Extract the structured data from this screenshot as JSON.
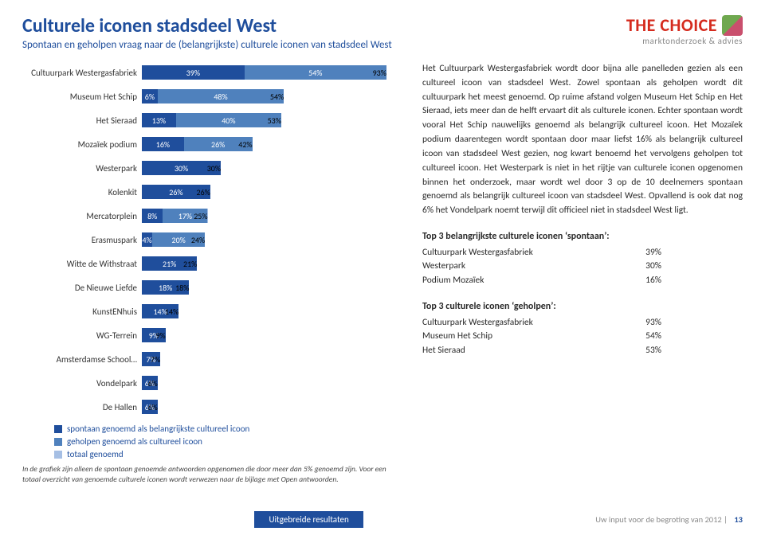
{
  "header": {
    "title": "Culturele iconen stadsdeel West",
    "subtitle": "Spontaan en geholpen vraag naar de (belangrijkste) culturele iconen van stadsdeel West"
  },
  "logo": {
    "main": "THE CHOICE",
    "sub": "marktonderzoek & advies"
  },
  "chart": {
    "type": "bar",
    "xmax": 100,
    "colors": {
      "spontaan": "#1f4e9c",
      "geholpen": "#4f81bd",
      "totaal": "#a6bfe4"
    },
    "label_color": "#ffffff",
    "label_fontsize": 10,
    "rows": [
      {
        "label": "Cultuurpark Westergasfabriek",
        "segments": [
          39,
          54
        ],
        "total": 93
      },
      {
        "label": "Museum Het Schip",
        "segments": [
          6,
          48
        ],
        "total": 54
      },
      {
        "label": "Het Sieraad",
        "segments": [
          13,
          40
        ],
        "total": 53
      },
      {
        "label": "Mozaïek podium",
        "segments": [
          16,
          26
        ],
        "total": 42
      },
      {
        "label": "Westerpark",
        "segments": [
          30
        ],
        "total": 30
      },
      {
        "label": "Kolenkit",
        "segments": [
          26
        ],
        "total": 26
      },
      {
        "label": "Mercatorplein",
        "segments": [
          8,
          17
        ],
        "total": 25
      },
      {
        "label": "Erasmuspark",
        "segments": [
          4,
          20
        ],
        "total": 24
      },
      {
        "label": "Witte de Withstraat",
        "segments": [
          21
        ],
        "total": 21
      },
      {
        "label": "De Nieuwe Liefde",
        "segments": [
          18
        ],
        "total": 18
      },
      {
        "label": "KunstENhuis",
        "segments": [
          14
        ],
        "total": 14
      },
      {
        "label": "WG-Terrein",
        "segments": [
          9
        ],
        "total": 9
      },
      {
        "label": "Amsterdamse School…",
        "segments": [
          7
        ],
        "total": 7
      },
      {
        "label": "Vondelpark",
        "segments": [
          6
        ],
        "total": 6
      },
      {
        "label": "De Hallen",
        "segments": [
          6
        ],
        "total": 6
      }
    ],
    "legend": [
      {
        "key": "spontaan",
        "label": "spontaan genoemd als belangrijkste cultureel icoon"
      },
      {
        "key": "geholpen",
        "label": "geholpen genoemd als cultureel icoon"
      },
      {
        "key": "totaal",
        "label": "totaal genoemd"
      }
    ],
    "footnote": "In de grafiek zijn alleen de spontaan genoemde antwoorden opgenomen die door meer dan 5% genoemd zijn. Voor een totaal overzicht van genoemde culturele iconen wordt verwezen naar de bijlage met Open antwoorden."
  },
  "body_text": "Het Cultuurpark Westergasfabriek wordt door bijna alle panelleden gezien als een cultureel icoon van stadsdeel West. Zowel spontaan als geholpen wordt dit cultuurpark het meest genoemd. Op ruime afstand volgen Museum Het Schip en Het Sieraad, iets meer dan de helft ervaart dit als culturele iconen. Echter spontaan wordt vooral Het Schip nauwelijks genoemd als belangrijk cultureel icoon. Het Mozaïek podium daarentegen wordt spontaan door maar liefst 16% als belangrijk cultureel icoon van stadsdeel West gezien, nog kwart benoemd het vervolgens geholpen tot cultureel icoon. Het Westerpark is niet in het rijtje van culturele iconen opgenomen binnen het onderzoek, maar wordt wel door 3 op de 10 deelnemers spontaan genoemd als belangrijk cultureel icoon van stadsdeel West. Opvallend is ook dat nog 6% het Vondelpark noemt terwijl dit officieel niet in stadsdeel West ligt.",
  "top3a": {
    "heading": "Top 3 belangrijkste culturele iconen ‘spontaan’:",
    "rows": [
      {
        "name": "Cultuurpark Westergasfabriek",
        "pct": "39%"
      },
      {
        "name": "Westerpark",
        "pct": "30%"
      },
      {
        "name": "Podium Mozaïek",
        "pct": "16%"
      }
    ]
  },
  "top3b": {
    "heading": "Top 3 culturele iconen ‘geholpen’:",
    "rows": [
      {
        "name": "Cultuurpark Westergasfabriek",
        "pct": "93%"
      },
      {
        "name": "Museum Het Schip",
        "pct": "54%"
      },
      {
        "name": "Het Sieraad",
        "pct": "53%"
      }
    ]
  },
  "footer": {
    "center": "Uitgebreide resultaten",
    "right": "Uw input voor de begroting van 2012",
    "page": "13"
  }
}
